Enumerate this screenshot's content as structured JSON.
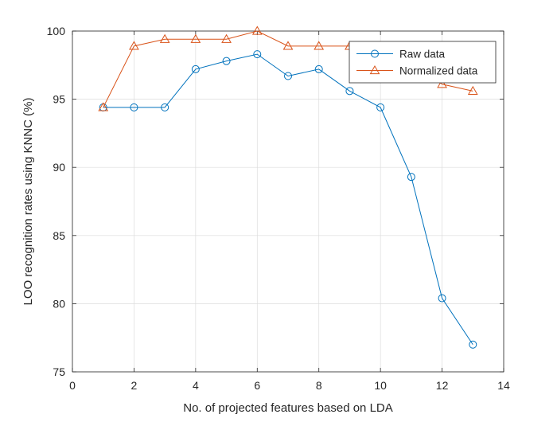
{
  "chart_data": {
    "type": "line",
    "xlabel": "No. of projected features based on LDA",
    "ylabel": "LOO recognition rates using KNNC (%)",
    "xlim": [
      0,
      14
    ],
    "ylim": [
      75,
      100
    ],
    "xticks": [
      0,
      2,
      4,
      6,
      8,
      10,
      12,
      14
    ],
    "yticks": [
      75,
      80,
      85,
      90,
      95,
      100
    ],
    "grid": true,
    "legend_position": "top-right",
    "x": [
      1,
      2,
      3,
      4,
      5,
      6,
      7,
      8,
      9,
      10,
      11,
      12,
      13
    ],
    "series": [
      {
        "name": "Raw data",
        "marker": "circle",
        "color": "#0072BD",
        "values": [
          94.4,
          94.4,
          94.4,
          97.2,
          97.8,
          98.3,
          96.7,
          97.2,
          95.6,
          94.4,
          89.3,
          80.4,
          77.0
        ]
      },
      {
        "name": "Normalized data",
        "marker": "triangle",
        "color": "#D95319",
        "values": [
          94.4,
          98.9,
          99.4,
          99.4,
          99.4,
          100.0,
          98.9,
          98.9,
          98.9,
          98.9,
          97.8,
          96.1,
          95.6
        ]
      }
    ]
  }
}
